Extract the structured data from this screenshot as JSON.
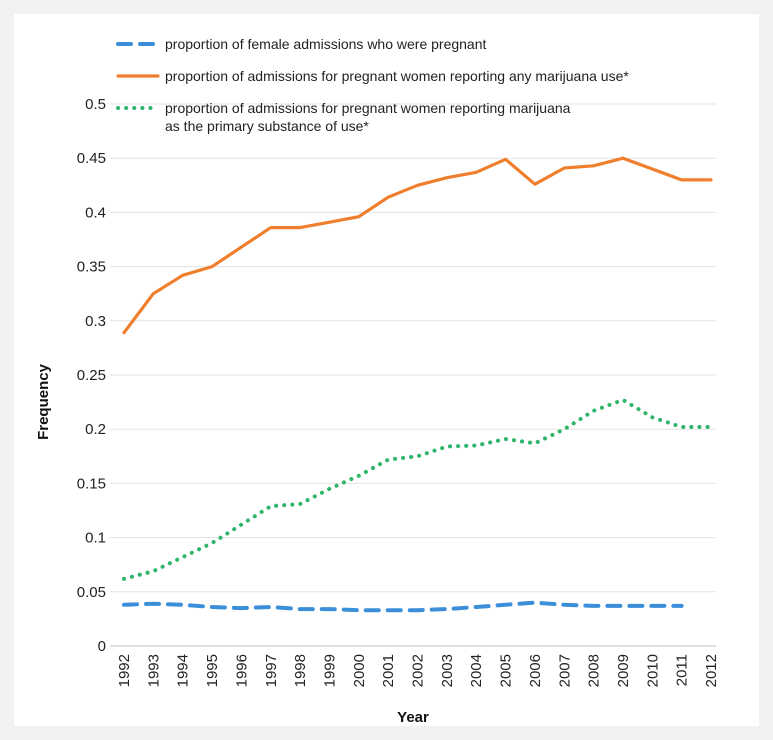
{
  "chart_data": {
    "type": "line",
    "title": "",
    "xlabel": "Year",
    "ylabel": "Frequency",
    "ylim": [
      0,
      0.5
    ],
    "yticks": [
      "0",
      "0.05",
      "0.1",
      "0.15",
      "0.2",
      "0.25",
      "0.3",
      "0.35",
      "0.4",
      "0.45",
      "0.5"
    ],
    "categories": [
      "1992",
      "1993",
      "1994",
      "1995",
      "1996",
      "1997",
      "1998",
      "1999",
      "2000",
      "2001",
      "2002",
      "2003",
      "2004",
      "2005",
      "2006",
      "2007",
      "2008",
      "2009",
      "2010",
      "2011",
      "2012"
    ],
    "grid": true,
    "legend_position": "top",
    "series": [
      {
        "name": "proportion of female admissions who were pregnant",
        "style": "dashed",
        "color": "#3b8fd8",
        "values": [
          0.038,
          0.039,
          0.038,
          0.036,
          0.035,
          0.036,
          0.034,
          0.034,
          0.033,
          0.033,
          0.033,
          0.034,
          0.036,
          0.038,
          0.04,
          0.038,
          0.037,
          0.037,
          0.037,
          0.037,
          null
        ]
      },
      {
        "name": "proportion of admissions for pregnant women reporting any marijuana use*",
        "style": "solid",
        "color": "#f07f2d",
        "values": [
          0.289,
          0.325,
          0.342,
          0.35,
          0.368,
          0.386,
          0.386,
          0.391,
          0.396,
          0.414,
          0.425,
          0.432,
          0.437,
          0.449,
          0.426,
          0.441,
          0.443,
          0.45,
          0.44,
          0.43,
          0.43
        ]
      },
      {
        "name": "proportion of admissions for pregnant women reporting marijuana as the primary substance of use*",
        "name_lines": [
          "proportion of admissions for pregnant women reporting marijuana",
          "as the primary substance of use*"
        ],
        "style": "dotted",
        "color": "#2eb56a",
        "values": [
          0.062,
          0.069,
          0.082,
          0.095,
          0.112,
          0.129,
          0.131,
          0.145,
          0.157,
          0.172,
          0.175,
          0.184,
          0.185,
          0.191,
          0.187,
          0.2,
          0.217,
          0.227,
          0.211,
          0.202,
          0.202
        ]
      }
    ]
  }
}
